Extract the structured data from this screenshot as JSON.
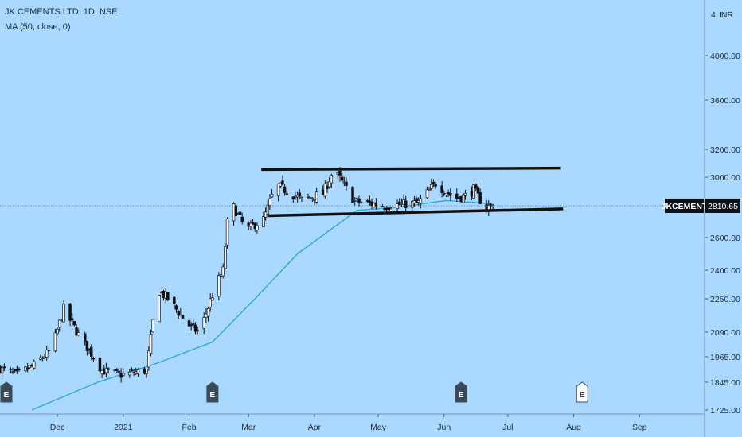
{
  "legend": {
    "title": "JK CEMENTS LTD, 1D, NSE",
    "indicator": "MA (50, close, 0)"
  },
  "axis": {
    "currency": "INR",
    "currency_prefix": "4",
    "ticks": [
      "4000.00",
      "3600.00",
      "3200.00",
      "3000.00",
      "2600.00",
      "2400.00",
      "2250.00",
      "2090.00",
      "1965.00",
      "1845.00",
      "1725.00"
    ],
    "months": [
      "Dec",
      "2021",
      "Feb",
      "Mar",
      "Apr",
      "May",
      "Jun",
      "Jul",
      "Aug",
      "Sep"
    ]
  },
  "price_tag": {
    "symbol": "JKCEMENT",
    "value": "2810.65"
  },
  "events": [
    {
      "label": "E",
      "date": "2020-11-07",
      "style": "solid"
    },
    {
      "label": "E",
      "date": "2021-02-12",
      "style": "solid"
    },
    {
      "label": "E",
      "date": "2021-06-09",
      "style": "solid"
    },
    {
      "label": "E",
      "date": "2021-08-05",
      "style": "hollow"
    }
  ],
  "colors": {
    "background": "#aad8ff",
    "candle_up": "#ffffff",
    "candle_down": "#0d1117",
    "ma_line": "#2aa9d9",
    "trendline": "#111111",
    "price_tag_bg": "#0d1117"
  },
  "chart_data": {
    "type": "candlestick",
    "x_range": [
      "2020-11-04",
      "2021-09-23"
    ],
    "y_ticks": [
      4000,
      3600,
      3200,
      3000,
      2600,
      2400,
      2250,
      2090,
      1965,
      1845,
      1725
    ],
    "last_price": 2810.65,
    "key_points": [
      [
        "2020-11-04",
        1910
      ],
      [
        "2020-11-12",
        1880
      ],
      [
        "2020-11-20",
        1925
      ],
      [
        "2020-11-28",
        2000
      ],
      [
        "2020-12-04",
        2200
      ],
      [
        "2020-12-12",
        2060
      ],
      [
        "2020-12-22",
        1900
      ],
      [
        "2020-12-31",
        1880
      ],
      [
        "2021-01-12",
        1900
      ],
      [
        "2021-01-17",
        2300
      ],
      [
        "2021-01-22",
        2250
      ],
      [
        "2021-02-02",
        2110
      ],
      [
        "2021-02-06",
        2090
      ],
      [
        "2021-02-13",
        2300
      ],
      [
        "2021-02-17",
        2400
      ],
      [
        "2021-02-20",
        2850
      ],
      [
        "2021-02-28",
        2650
      ],
      [
        "2021-03-08",
        2720
      ],
      [
        "2021-03-14",
        2950
      ],
      [
        "2021-03-26",
        2850
      ],
      [
        "2021-04-05",
        2890
      ],
      [
        "2021-04-10",
        3050
      ],
      [
        "2021-04-20",
        2840
      ],
      [
        "2021-05-05",
        2810
      ],
      [
        "2021-05-20",
        2830
      ],
      [
        "2021-05-28",
        2960
      ],
      [
        "2021-06-06",
        2860
      ],
      [
        "2021-06-12",
        2880
      ],
      [
        "2021-06-15",
        2920
      ],
      [
        "2021-06-20",
        2800
      ],
      [
        "2021-06-24",
        2810.65
      ]
    ],
    "ma_50": [
      [
        "2020-11-19",
        1725
      ],
      [
        "2020-12-20",
        1845
      ],
      [
        "2021-01-17",
        1935
      ],
      [
        "2021-02-12",
        2040
      ],
      [
        "2021-03-04",
        2250
      ],
      [
        "2021-03-24",
        2500
      ],
      [
        "2021-04-21",
        2780
      ],
      [
        "2021-05-10",
        2800
      ],
      [
        "2021-06-02",
        2845
      ],
      [
        "2021-06-23",
        2825
      ]
    ],
    "trendlines": [
      {
        "from": [
          "2021-03-07",
          3055
        ],
        "to": [
          "2021-07-26",
          3065
        ]
      },
      {
        "from": [
          "2021-03-10",
          2745
        ],
        "to": [
          "2021-07-27",
          2790
        ]
      }
    ]
  }
}
